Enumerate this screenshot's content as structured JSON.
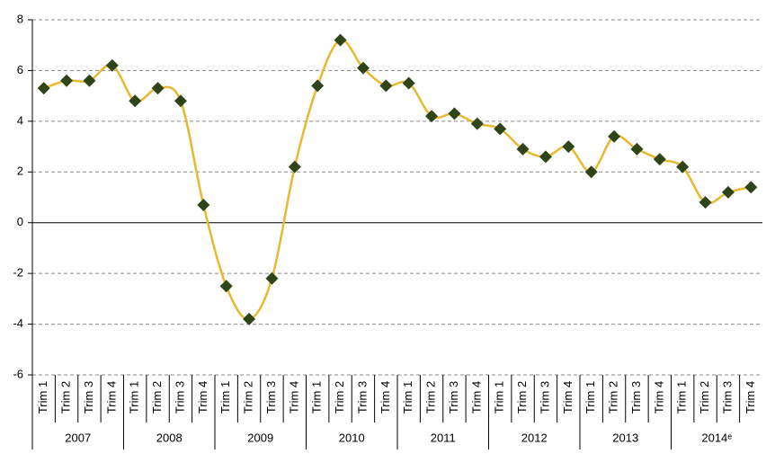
{
  "chart_data": {
    "type": "line",
    "categories": [
      "Trim 1",
      "Trim 2",
      "Trim 3",
      "Trim 4",
      "Trim 1",
      "Trim 2",
      "Trim 3",
      "Trim 4",
      "Trim 1",
      "Trim 2",
      "Trim 3",
      "Trim 4",
      "Trim 1",
      "Trim 2",
      "Trim 3",
      "Trim 4",
      "Trim 1",
      "Trim 2",
      "Trim 3",
      "Trim 4",
      "Trim 1",
      "Trim 2",
      "Trim 3",
      "Trim 4",
      "Trim 1",
      "Trim 2",
      "Trim 3",
      "Trim 4",
      "Trim 1",
      "Trim 2",
      "Trim 3",
      "Trim 4"
    ],
    "category_groups": [
      "2007",
      "2008",
      "2009",
      "2010",
      "2011",
      "2012",
      "2013",
      "2014ᵉ"
    ],
    "series": [
      {
        "color": "#e8b830",
        "marker_color": "#2f4418",
        "values": [
          5.3,
          5.6,
          5.6,
          6.2,
          4.8,
          5.3,
          4.8,
          0.7,
          -2.5,
          -3.8,
          -2.2,
          2.2,
          5.4,
          7.2,
          6.1,
          5.4,
          5.5,
          4.2,
          4.3,
          3.9,
          3.7,
          2.9,
          2.6,
          3.0,
          2.0,
          3.4,
          2.9,
          2.5,
          2.2,
          0.8,
          1.2,
          1.4
        ]
      }
    ],
    "ylim": [
      -6,
      8
    ],
    "yticks": [
      -6,
      -4,
      -2,
      0,
      2,
      4,
      6,
      8
    ],
    "grid": true
  }
}
